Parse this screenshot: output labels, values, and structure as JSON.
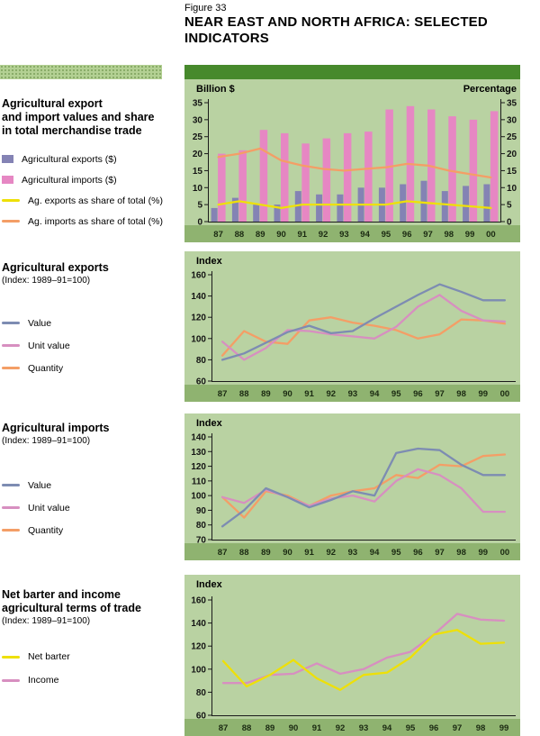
{
  "figure": {
    "label": "Figure 33",
    "title_lines": [
      "NEAR EAST AND NORTH AFRICA: SELECTED",
      "INDICATORS"
    ]
  },
  "colors": {
    "header_green": "#47892c",
    "panel_green": "#b9d2a2",
    "band_green": "#8fb370",
    "sidebar_green": "#b3d093",
    "exports_bar": "#8483b4",
    "imports_bar": "#e687c3",
    "exports_share_line": "#eee008",
    "imports_share_line": "#f49e66",
    "value_line": "#7d8cb2",
    "unit_value_line": "#d78fc0",
    "quantity_line": "#f49e66",
    "net_barter_line": "#eee008",
    "income_line": "#d78fc0"
  },
  "sidebar": {
    "sections": [
      {
        "heading_lines": [
          "Agricultural export",
          "and import values and share",
          "in total merchandise trade"
        ],
        "subtitle": "",
        "legend": [
          {
            "swatch": "square",
            "color_key": "exports_bar",
            "label": "Agricultural exports ($)"
          },
          {
            "swatch": "square",
            "color_key": "imports_bar",
            "label": "Agricultural imports ($)"
          },
          {
            "swatch": "line",
            "color_key": "exports_share_line",
            "label": "Ag. exports as share of total (%)"
          },
          {
            "swatch": "line",
            "color_key": "imports_share_line",
            "label": "Ag. imports as share of total (%)"
          }
        ]
      },
      {
        "heading_lines": [
          "Agricultural exports"
        ],
        "subtitle": "(Index: 1989–91=100)",
        "legend": [
          {
            "swatch": "line",
            "color_key": "value_line",
            "label": "Value"
          },
          {
            "swatch": "line",
            "color_key": "unit_value_line",
            "label": "Unit value"
          },
          {
            "swatch": "line",
            "color_key": "quantity_line",
            "label": "Quantity"
          }
        ]
      },
      {
        "heading_lines": [
          "Agricultural imports"
        ],
        "subtitle": "(Index: 1989–91=100)",
        "legend": [
          {
            "swatch": "line",
            "color_key": "value_line",
            "label": "Value"
          },
          {
            "swatch": "line",
            "color_key": "unit_value_line",
            "label": "Unit value"
          },
          {
            "swatch": "line",
            "color_key": "quantity_line",
            "label": "Quantity"
          }
        ]
      },
      {
        "heading_lines": [
          "Net barter and income",
          "agricultural terms of trade"
        ],
        "subtitle": "(Index: 1989–91=100)",
        "legend": [
          {
            "swatch": "line",
            "color_key": "net_barter_line",
            "label": "Net barter"
          },
          {
            "swatch": "line",
            "color_key": "income_line",
            "label": "Income"
          }
        ]
      }
    ]
  },
  "chart_data": [
    {
      "type": "bar",
      "title": "Agricultural export and import values and share in total merchandise trade",
      "ylabel_left": "Billion $",
      "ylabel_right": "Percentage",
      "categories": [
        "87",
        "88",
        "89",
        "90",
        "91",
        "92",
        "93",
        "94",
        "95",
        "96",
        "97",
        "98",
        "99",
        "00"
      ],
      "ylim": [
        0,
        35
      ],
      "yticks": [
        0,
        5,
        10,
        15,
        20,
        25,
        30,
        35
      ],
      "legend_position": "left",
      "grid": false,
      "bar_series": [
        {
          "name": "Agricultural exports ($)",
          "color_key": "exports_bar",
          "values": [
            4,
            7,
            5,
            5,
            9,
            8,
            8,
            10,
            10,
            11,
            12,
            9,
            10.5,
            11
          ]
        },
        {
          "name": "Agricultural imports ($)",
          "color_key": "imports_bar",
          "values": [
            20,
            21,
            27,
            26,
            23,
            24.5,
            26,
            26.5,
            33,
            34,
            33,
            31,
            30,
            32.5
          ]
        }
      ],
      "line_series": [
        {
          "name": "Ag. exports as share of total (%)",
          "color_key": "exports_share_line",
          "values": [
            5,
            6,
            5,
            4,
            5,
            5,
            5,
            5,
            5,
            6,
            5.5,
            5,
            4.5,
            4
          ]
        },
        {
          "name": "Ag. imports as share of total (%)",
          "color_key": "imports_share_line",
          "values": [
            19,
            20,
            21.5,
            18,
            16.5,
            15.5,
            15,
            15.5,
            16,
            17,
            16.5,
            15,
            14,
            13
          ]
        }
      ]
    },
    {
      "type": "line",
      "title": "Agricultural exports",
      "subtitle": "(Index: 1989–91=100)",
      "ylabel": "Index",
      "categories": [
        "87",
        "88",
        "89",
        "90",
        "91",
        "92",
        "93",
        "94",
        "95",
        "96",
        "97",
        "98",
        "99",
        "00"
      ],
      "ylim": [
        60,
        160
      ],
      "yticks": [
        60,
        80,
        100,
        120,
        140,
        160
      ],
      "grid": false,
      "series": [
        {
          "name": "Value",
          "color_key": "value_line",
          "values": [
            80,
            86,
            96,
            106,
            112,
            105,
            107,
            119,
            130,
            141,
            151,
            144,
            136,
            136
          ]
        },
        {
          "name": "Unit value",
          "color_key": "unit_value_line",
          "values": [
            97,
            80,
            91,
            108,
            107,
            104,
            102,
            100,
            111,
            130,
            141,
            126,
            117,
            116
          ]
        },
        {
          "name": "Quantity",
          "color_key": "quantity_line",
          "values": [
            84,
            107,
            97,
            95,
            117,
            120,
            115,
            112,
            108,
            100,
            104,
            118,
            117,
            114
          ]
        }
      ]
    },
    {
      "type": "line",
      "title": "Agricultural imports",
      "subtitle": "(Index: 1989–91=100)",
      "ylabel": "Index",
      "categories": [
        "87",
        "88",
        "89",
        "90",
        "91",
        "92",
        "93",
        "94",
        "95",
        "96",
        "97",
        "98",
        "99",
        "00"
      ],
      "ylim": [
        70,
        140
      ],
      "yticks": [
        70,
        80,
        90,
        100,
        110,
        120,
        130,
        140
      ],
      "grid": false,
      "series": [
        {
          "name": "Value",
          "color_key": "value_line",
          "values": [
            79,
            90,
            105,
            99,
            92,
            97,
            103,
            100,
            129,
            132,
            131,
            121,
            114,
            114
          ]
        },
        {
          "name": "Unit value",
          "color_key": "unit_value_line",
          "values": [
            99,
            95,
            104,
            99,
            93,
            98,
            100,
            96,
            110,
            118,
            114,
            105,
            89,
            89
          ]
        },
        {
          "name": "Quantity",
          "color_key": "quantity_line",
          "values": [
            99,
            85,
            103,
            100,
            93,
            100,
            103,
            105,
            114,
            112,
            121,
            120,
            127,
            128
          ]
        }
      ]
    },
    {
      "type": "line",
      "title": "Net barter and income agricultural terms of trade",
      "subtitle": "(Index: 1989–91=100)",
      "ylabel": "Index",
      "categories": [
        "87",
        "88",
        "89",
        "90",
        "91",
        "92",
        "93",
        "94",
        "95",
        "96",
        "97",
        "98",
        "99"
      ],
      "ylim": [
        60,
        160
      ],
      "yticks": [
        60,
        80,
        100,
        120,
        140,
        160
      ],
      "grid": false,
      "series": [
        {
          "name": "Net barter",
          "color_key": "net_barter_line",
          "values": [
            107,
            85,
            95,
            108,
            92,
            82,
            95,
            97,
            110,
            130,
            134,
            122,
            123
          ]
        },
        {
          "name": "Income",
          "color_key": "income_line",
          "values": [
            88,
            88,
            95,
            96,
            105,
            96,
            100,
            110,
            115,
            130,
            148,
            143,
            142
          ]
        }
      ]
    }
  ]
}
